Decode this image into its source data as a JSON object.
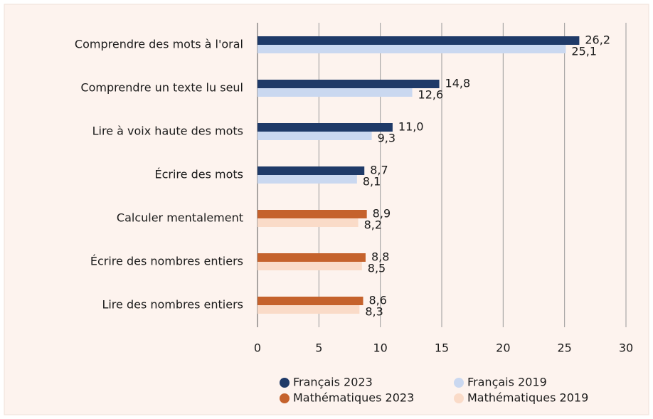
{
  "chart_data": {
    "type": "bar",
    "orientation": "horizontal",
    "categories": [
      "Comprendre des mots à l'oral",
      "Comprendre un texte lu seul",
      "Lire à voix haute des mots",
      "Écrire des mots",
      "Calculer mentalement",
      "Écrire des nombres entiers",
      "Lire des nombres entiers"
    ],
    "series": [
      {
        "name": "Français 2023",
        "color": "#1f3a68",
        "values": [
          26.2,
          14.8,
          11.0,
          8.7,
          null,
          null,
          null
        ],
        "value_labels": [
          "26,2",
          "14,8",
          "11,0",
          "8,7",
          null,
          null,
          null
        ]
      },
      {
        "name": "Français 2019",
        "color": "#cad8f0",
        "values": [
          25.1,
          12.6,
          9.3,
          8.1,
          null,
          null,
          null
        ],
        "value_labels": [
          "25,1",
          "12,6",
          "9,3",
          "8,1",
          null,
          null,
          null
        ]
      },
      {
        "name": "Mathématiques 2023",
        "color": "#c5622c",
        "values": [
          null,
          null,
          null,
          null,
          8.9,
          8.8,
          8.6
        ],
        "value_labels": [
          null,
          null,
          null,
          null,
          "8,9",
          "8,8",
          "8,6"
        ]
      },
      {
        "name": "Mathématiques 2019",
        "color": "#fadbc8",
        "values": [
          null,
          null,
          null,
          null,
          8.2,
          8.5,
          8.3
        ],
        "value_labels": [
          null,
          null,
          null,
          null,
          "8,2",
          "8,5",
          "8,3"
        ]
      }
    ],
    "xlim": [
      0,
      30
    ],
    "xticks": [
      0,
      5,
      10,
      15,
      20,
      25,
      30
    ],
    "grid": true,
    "legend": "bottom"
  }
}
